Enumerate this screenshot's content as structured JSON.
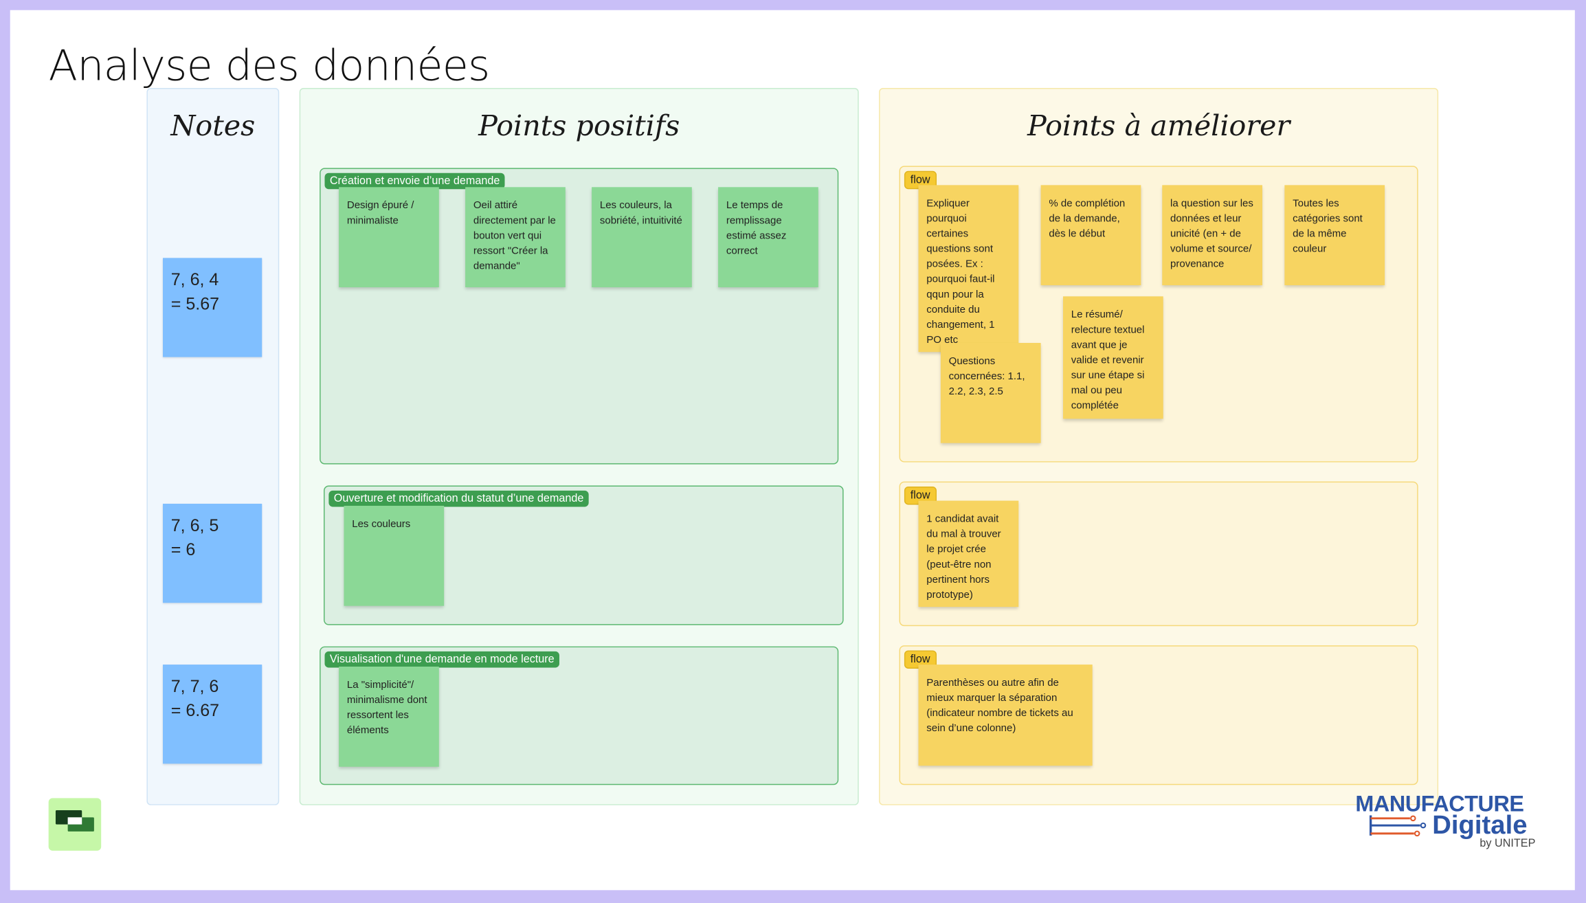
{
  "page_title": "Analyse des données",
  "notes": {
    "title": "Notes",
    "items": [
      "7, 6, 4\n=  5.67",
      "7, 6, 5\n= 6",
      "7, 7, 6\n= 6.67"
    ]
  },
  "positifs": {
    "title": "Points positifs",
    "sections": [
      {
        "label": "Création et envoie d’une demande",
        "notes": [
          "Design épuré / minimaliste",
          "Oeil attiré directement par le bouton vert qui ressort \"Créer la demande\"",
          "Les couleurs, la sobriété, intuitivité",
          "Le temps de remplissage estimé assez correct"
        ]
      },
      {
        "label": "Ouverture et modification du statut d’une demande",
        "notes": [
          "Les couleurs"
        ]
      },
      {
        "label": "Visualisation d'une demande en mode lecture",
        "notes": [
          "La \"simplicité\"/ minimalisme dont ressortent les éléments"
        ]
      }
    ]
  },
  "ameliorer": {
    "title": "Points à améliorer",
    "sections": [
      {
        "label": "flow",
        "notes": [
          "Expliquer pourquoi certaines questions sont posées. Ex : pourquoi faut-il qqun pour la conduite du changement, 1 PO etc",
          "% de complétion de la demande, dès le début",
          "la question sur les données et leur unicité (en + de volume et source/ provenance",
          "Toutes les catégories sont de la même couleur",
          "Le résumé/ relecture textuel avant que je valide et revenir sur une étape si mal ou peu complétée",
          "Questions concernées: 1.1, 2.2, 2.3, 2.5"
        ]
      },
      {
        "label": "flow",
        "notes": [
          "1 candidat avait du mal à trouver le projet crée (peut-être non pertinent hors prototype)"
        ]
      },
      {
        "label": "flow",
        "notes": [
          "Parenthèses ou autre afin de mieux marquer la séparation (indicateur nombre de tickets au sein d’une colonne)"
        ]
      }
    ]
  },
  "logo": {
    "line1": "MANUFACTURE",
    "line2": "Digitale",
    "line3": "by UNITEP"
  },
  "colors": {
    "frame": "#c9bff7",
    "green_sticky": "#8bd896",
    "green_label": "#3d9e50",
    "yellow_sticky": "#f7d461",
    "yellow_label": "#f5c932",
    "blue_sticky": "#80bfff",
    "logo_blue": "#2d56a6",
    "logo_orange": "#e05a2b"
  }
}
